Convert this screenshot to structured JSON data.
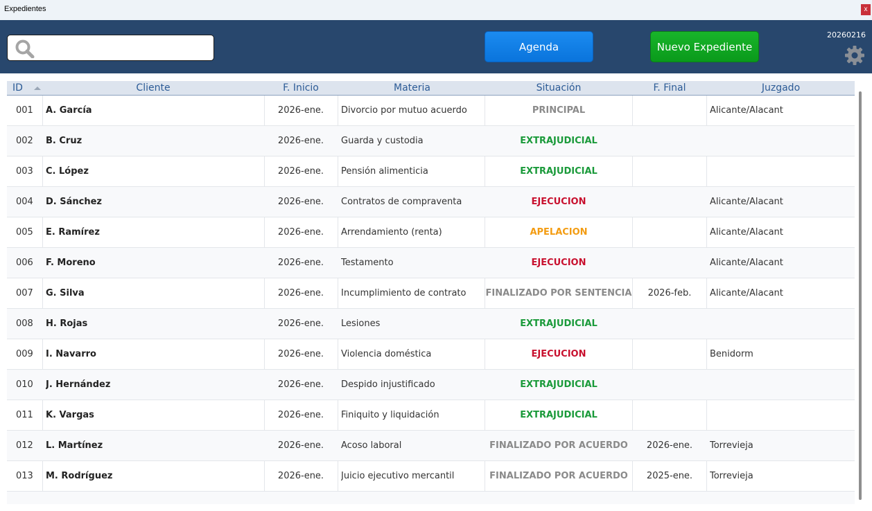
{
  "window": {
    "title": "Expedientes",
    "close_label": "x"
  },
  "toolbar": {
    "search_value": "",
    "agenda_label": "Agenda",
    "nuevo_label": "Nuevo Expediente",
    "version": "20260216",
    "icons": [
      "search-icon",
      "gear-icon"
    ]
  },
  "colors": {
    "toolbar_bg": "#28476d",
    "agenda_btn": "#0a74dc",
    "nuevo_btn": "#0a9a1b",
    "header_text": "#2c5b96",
    "status_principal": "#8a8a8a",
    "status_extrajudicial": "#1a9a3a",
    "status_ejecucion": "#c8102e",
    "status_apelacion": "#f39c12",
    "status_finalizado": "#8a8a8a"
  },
  "table": {
    "headers": [
      "ID",
      "Cliente",
      "F. Inicio",
      "Materia",
      "Situación",
      "F. Final",
      "Juzgado"
    ],
    "sort_column": "ID",
    "rows": [
      {
        "id": "001",
        "cliente": "A. García",
        "inicio": "2026-ene.",
        "materia": "Divorcio por mutuo acuerdo",
        "situacion": "PRINCIPAL",
        "status": "principal",
        "final": "",
        "juzgado": "Alicante/Alacant"
      },
      {
        "id": "002",
        "cliente": "B. Cruz",
        "inicio": "2026-ene.",
        "materia": "Guarda y custodia",
        "situacion": "EXTRAJUDICIAL",
        "status": "extrajudicial",
        "final": "",
        "juzgado": ""
      },
      {
        "id": "003",
        "cliente": "C. López",
        "inicio": "2026-ene.",
        "materia": "Pensión alimenticia",
        "situacion": "EXTRAJUDICIAL",
        "status": "extrajudicial",
        "final": "",
        "juzgado": ""
      },
      {
        "id": "004",
        "cliente": "D. Sánchez",
        "inicio": "2026-ene.",
        "materia": "Contratos de compraventa",
        "situacion": "EJECUCION",
        "status": "ejecucion",
        "final": "",
        "juzgado": "Alicante/Alacant"
      },
      {
        "id": "005",
        "cliente": "E. Ramírez",
        "inicio": "2026-ene.",
        "materia": "Arrendamiento (renta)",
        "situacion": "APELACION",
        "status": "apelacion",
        "final": "",
        "juzgado": "Alicante/Alacant"
      },
      {
        "id": "006",
        "cliente": "F. Moreno",
        "inicio": "2026-ene.",
        "materia": "Testamento",
        "situacion": "EJECUCION",
        "status": "ejecucion",
        "final": "",
        "juzgado": "Alicante/Alacant"
      },
      {
        "id": "007",
        "cliente": "G. Silva",
        "inicio": "2026-ene.",
        "materia": "Incumplimiento de contrato",
        "situacion": "FINALIZADO POR SENTENCIA",
        "status": "finalizado",
        "final": "2026-feb.",
        "juzgado": "Alicante/Alacant"
      },
      {
        "id": "008",
        "cliente": "H. Rojas",
        "inicio": "2026-ene.",
        "materia": "Lesiones",
        "situacion": "EXTRAJUDICIAL",
        "status": "extrajudicial",
        "final": "",
        "juzgado": ""
      },
      {
        "id": "009",
        "cliente": "I. Navarro",
        "inicio": "2026-ene.",
        "materia": "Violencia doméstica",
        "situacion": "EJECUCION",
        "status": "ejecucion",
        "final": "",
        "juzgado": "Benidorm"
      },
      {
        "id": "010",
        "cliente": "J. Hernández",
        "inicio": "2026-ene.",
        "materia": "Despido injustificado",
        "situacion": "EXTRAJUDICIAL",
        "status": "extrajudicial",
        "final": "",
        "juzgado": ""
      },
      {
        "id": "011",
        "cliente": "K. Vargas",
        "inicio": "2026-ene.",
        "materia": "Finiquito y liquidación",
        "situacion": "EXTRAJUDICIAL",
        "status": "extrajudicial",
        "final": "",
        "juzgado": ""
      },
      {
        "id": "012",
        "cliente": "L. Martínez",
        "inicio": "2026-ene.",
        "materia": "Acoso laboral",
        "situacion": "FINALIZADO POR ACUERDO",
        "status": "finalizado",
        "final": "2026-ene.",
        "juzgado": "Torrevieja"
      },
      {
        "id": "013",
        "cliente": "M. Rodríguez",
        "inicio": "2026-ene.",
        "materia": "Juicio ejecutivo mercantil",
        "situacion": "FINALIZADO POR ACUERDO",
        "status": "finalizado",
        "final": "2025-ene.",
        "juzgado": "Torrevieja"
      }
    ]
  }
}
